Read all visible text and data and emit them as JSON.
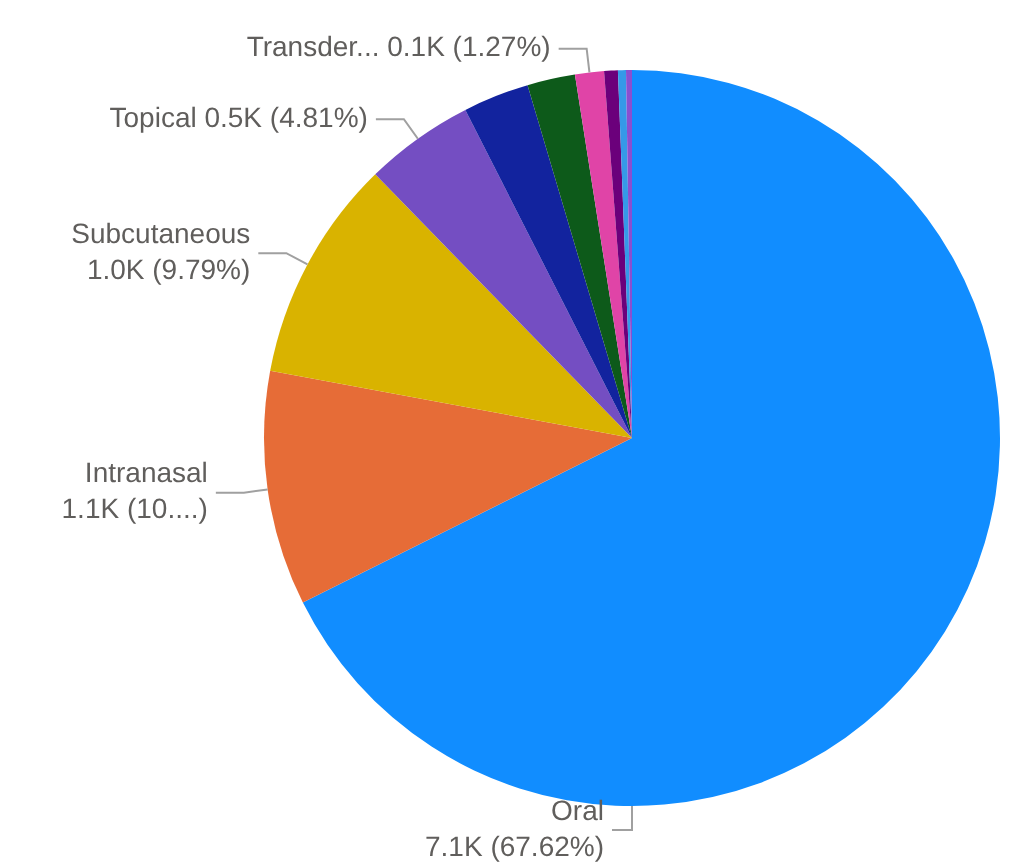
{
  "chart_data": {
    "type": "pie",
    "categories": [
      "Oral",
      "Intranasal",
      "Subcutaneous",
      "Topical",
      null,
      null,
      "Transder...",
      null,
      null,
      null
    ],
    "values": [
      67.62,
      10.3,
      9.79,
      4.81,
      2.9,
      2.1,
      1.27,
      0.6,
      0.35,
      0.26
    ],
    "value_labels": [
      "7.1K (67.62%)",
      "1.1K (10....)",
      "1.0K (9.79%)",
      "0.5K (4.81%)",
      null,
      null,
      "0.1K (1.27%)",
      null,
      null,
      null
    ],
    "colors": [
      "#118dff",
      "#e66c37",
      "#d9b300",
      "#744ec2",
      "#12239e",
      "#0d5a1a",
      "#e044a7",
      "#6b007b",
      "#3599e8",
      "#8a4fd0"
    ],
    "legend": false
  }
}
